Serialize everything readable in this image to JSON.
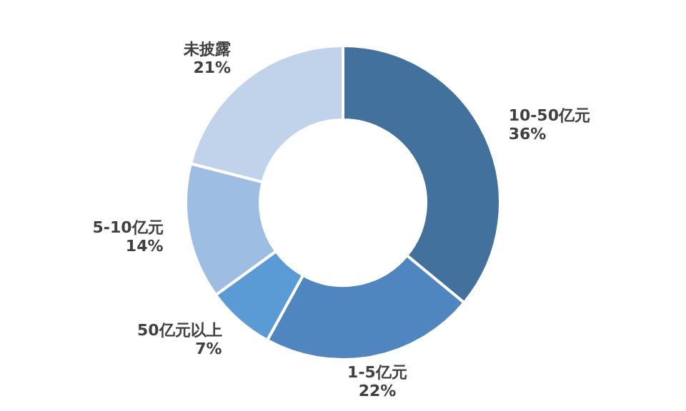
{
  "chart_data": {
    "type": "donut",
    "categories": [
      "10-50亿元",
      "1-5亿元",
      "50亿元以上",
      "5-10亿元",
      "未披露"
    ],
    "values": [
      36,
      22,
      7,
      14,
      21
    ],
    "colors": [
      "#41719c",
      "#4f86c0",
      "#5b9bd5",
      "#9dbde3",
      "#c0d3ea"
    ],
    "value_labels": [
      "36%",
      "22%",
      "7%",
      "14%",
      "21%"
    ],
    "legend": false
  }
}
